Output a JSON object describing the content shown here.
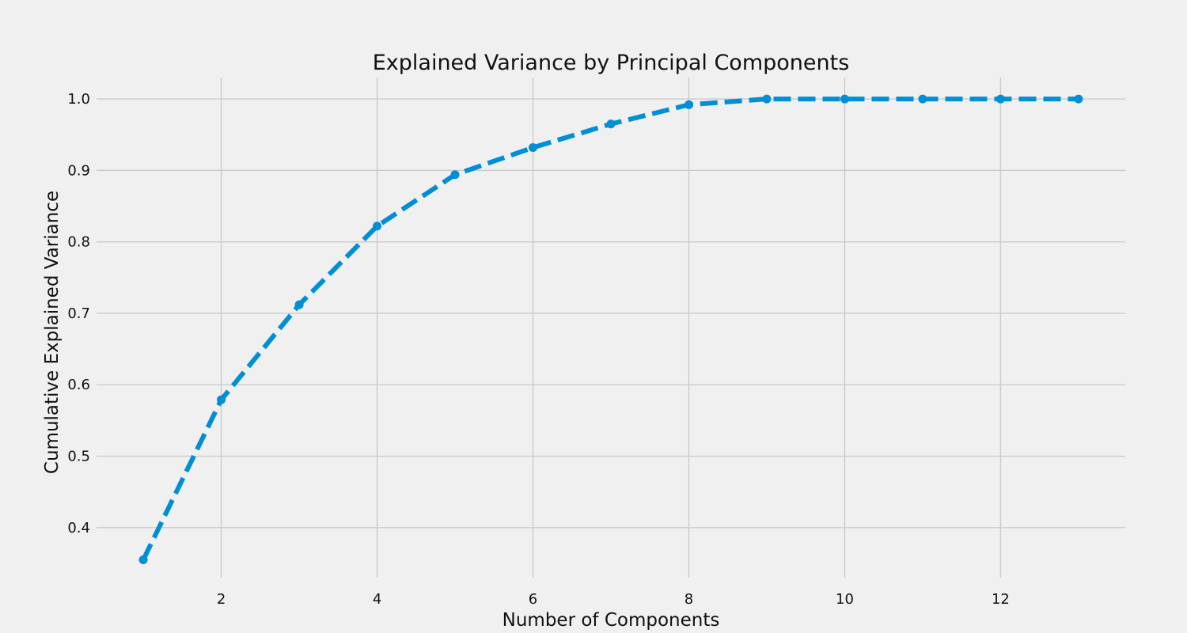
{
  "chart_data": {
    "type": "line",
    "title": "Explained Variance by Principal Components",
    "xlabel": "Number of Components",
    "ylabel": "Cumulative Explained Variance",
    "x": [
      1,
      2,
      3,
      4,
      5,
      6,
      7,
      8,
      9,
      10,
      11,
      12,
      13
    ],
    "series": [
      {
        "values": [
          0.355,
          0.579,
          0.712,
          0.822,
          0.894,
          0.932,
          0.965,
          0.992,
          1.0,
          1.0,
          1.0,
          1.0,
          1.0
        ]
      }
    ],
    "xlim": [
      0.4,
      13.6
    ],
    "ylim": [
      0.33,
      1.03
    ],
    "xticks": [
      2,
      4,
      6,
      8,
      10,
      12
    ],
    "xtick_labels": [
      "2",
      "4",
      "6",
      "8",
      "10",
      "12"
    ],
    "yticks": [
      0.4,
      0.5,
      0.6,
      0.7,
      0.8,
      0.9,
      1.0
    ],
    "ytick_labels": [
      "0.4",
      "0.5",
      "0.6",
      "0.7",
      "0.8",
      "0.9",
      "1.0"
    ],
    "grid": true,
    "line_style": "dashed",
    "marker": "circle",
    "colors": {
      "line": "#008fd5",
      "background": "#f0f0f0",
      "grid": "#cbcbcb"
    }
  }
}
